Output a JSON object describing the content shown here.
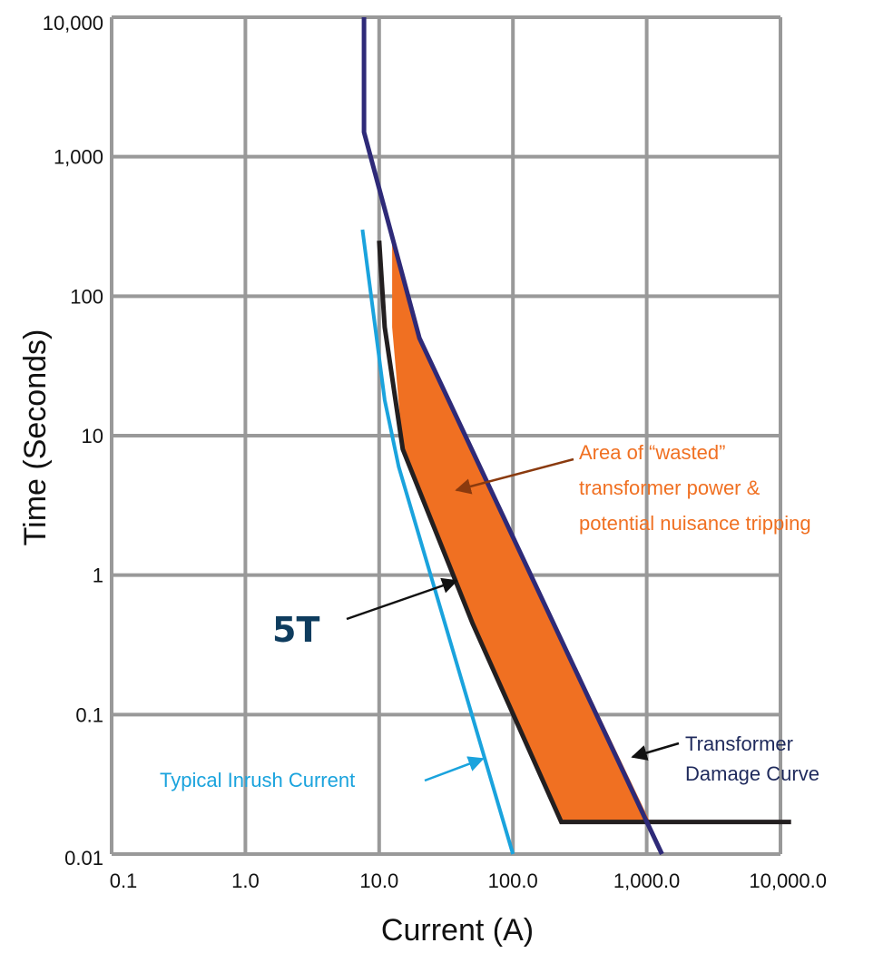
{
  "chart_data": {
    "type": "line",
    "x_scale": "log",
    "y_scale": "log",
    "xlim": [
      0.1,
      10000
    ],
    "ylim": [
      0.01,
      10000
    ],
    "grid": true,
    "xlabel": "Current (A)",
    "ylabel": "Time (Seconds)",
    "x_tick_labels": [
      "0.1",
      "1.0",
      "10.0",
      "100.0",
      "1,000.0",
      "10,000.0"
    ],
    "y_tick_labels": [
      "0.01",
      "0.1",
      "1",
      "10",
      "100",
      "1,000",
      "10,000"
    ],
    "x_ticks": [
      0.1,
      1,
      10,
      100,
      1000,
      10000
    ],
    "y_ticks": [
      0.01,
      0.1,
      1,
      10,
      100,
      1000,
      10000
    ],
    "colors": {
      "grid": "#999999",
      "damage": "#2e2a78",
      "fuse": "#231f20",
      "inrush": "#1aa3dd",
      "area": "#f07022",
      "annotation_area": "#f07022",
      "annotation_area_arrow": "#8a3a0e",
      "annotation_damage": "#1f2a5c",
      "annotation_5t": "#0e3c5e"
    },
    "series": [
      {
        "key": "damage",
        "points": [
          [
            7.7,
            10000
          ],
          [
            7.7,
            1500
          ],
          [
            20,
            50
          ],
          [
            1300,
            0.01
          ]
        ]
      },
      {
        "key": "fuse",
        "points": [
          [
            10,
            250
          ],
          [
            11,
            60
          ],
          [
            15,
            8
          ],
          [
            50,
            0.45
          ],
          [
            230,
            0.017
          ],
          [
            12000,
            0.017
          ]
        ]
      },
      {
        "key": "inrush",
        "points": [
          [
            7.5,
            300
          ],
          [
            11,
            18
          ],
          [
            14,
            6
          ],
          [
            100,
            0.01
          ]
        ]
      }
    ],
    "shaded_area": {
      "label": "Area of “wasted” transformer power & potential nuisance tripping",
      "points": [
        [
          12.5,
          250
        ],
        [
          20,
          50
        ],
        [
          1060,
          0.017
        ],
        [
          230,
          0.017
        ],
        [
          50,
          0.45
        ],
        [
          15,
          8
        ],
        [
          12.5,
          60
        ]
      ]
    },
    "annotations": {
      "area_lines": [
        "Area of “wasted”",
        "transformer power &",
        "potential nuisance tripping"
      ],
      "damage_lines": [
        "Transformer",
        "Damage Curve"
      ],
      "inrush": "Typical Inrush Current",
      "fuse": "5T"
    }
  }
}
